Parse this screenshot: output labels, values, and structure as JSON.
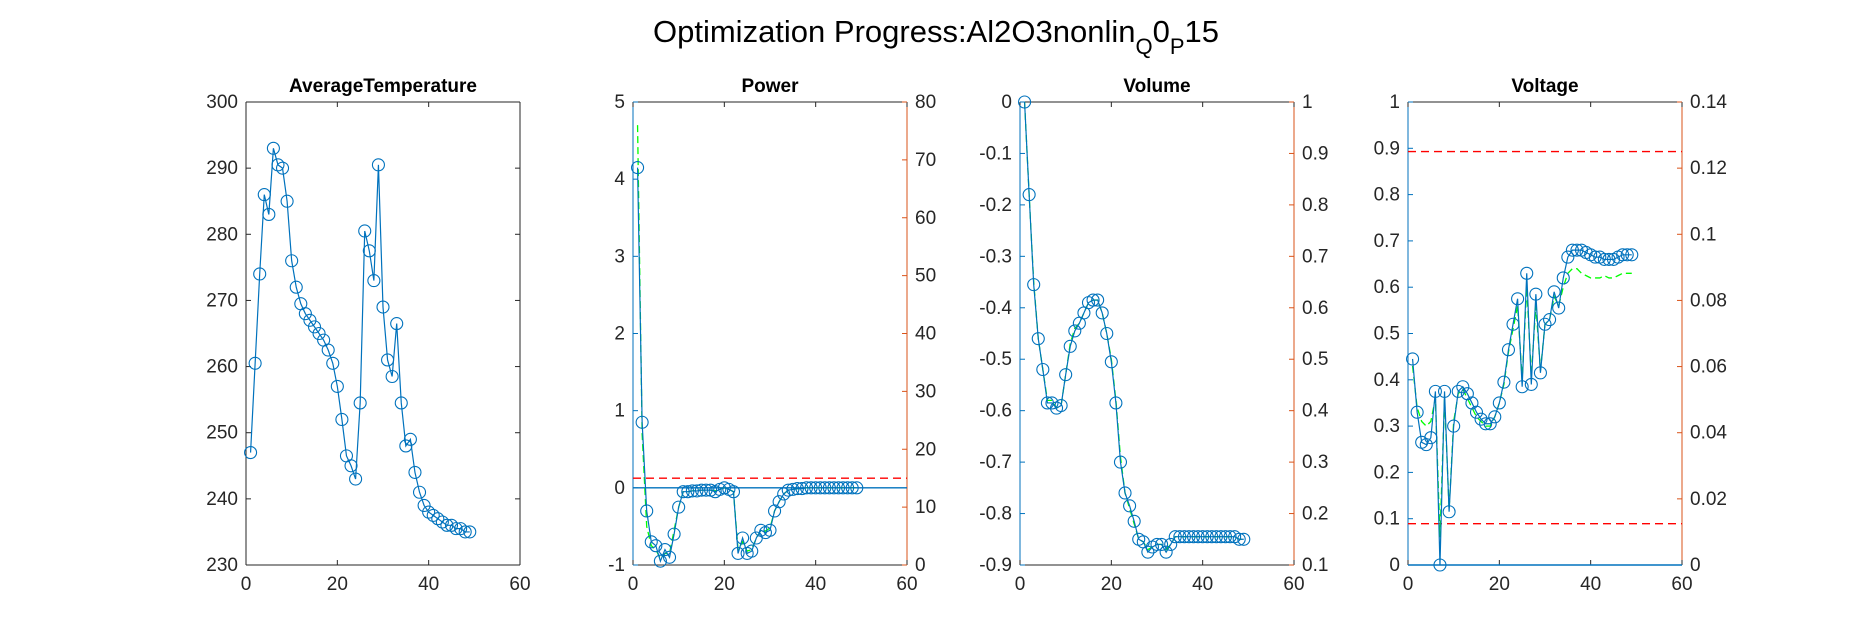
{
  "figure": {
    "title_main": "Optimization Progress:Al2O3nonlin",
    "title_sub1": "Q",
    "title_mid": "0",
    "title_sub2": "P",
    "title_end": "15"
  },
  "colors": {
    "blue": "#0072BD",
    "orange": "#D95319",
    "green": "#00FF00",
    "red": "#FF0000",
    "axis": "#262626"
  },
  "chart_data": [
    {
      "type": "line",
      "title": "AverageTemperature",
      "xlim": [
        0,
        60
      ],
      "xticks": [
        0,
        20,
        40,
        60
      ],
      "ylim": [
        230,
        300
      ],
      "yticks": [
        230,
        240,
        250,
        260,
        270,
        280,
        290,
        300
      ],
      "x": [
        1,
        2,
        3,
        4,
        5,
        6,
        7,
        8,
        9,
        10,
        11,
        12,
        13,
        14,
        15,
        16,
        17,
        18,
        19,
        20,
        21,
        22,
        23,
        24,
        25,
        26,
        27,
        28,
        29,
        30,
        31,
        32,
        33,
        34,
        35,
        36,
        37,
        38,
        39,
        40,
        41,
        42,
        43,
        44,
        45,
        46,
        47,
        48,
        49
      ],
      "y": [
        247,
        260.5,
        274,
        286,
        283,
        293,
        290.5,
        290,
        285,
        276,
        272,
        269.5,
        268,
        267,
        266,
        265,
        264,
        262.5,
        260.5,
        257,
        252,
        246.5,
        245,
        243,
        254.5,
        280.5,
        277.5,
        273,
        290.5,
        269,
        261,
        258.5,
        266.5,
        254.5,
        248,
        249,
        244,
        241,
        239,
        238,
        237.5,
        237,
        236.5,
        236,
        236,
        235.5,
        235.5,
        235,
        235
      ],
      "series_color": "blue",
      "marker": "circle"
    },
    {
      "type": "line",
      "title": "Power",
      "xlim": [
        0,
        60
      ],
      "xticks": [
        0,
        20,
        40,
        60
      ],
      "ylim": [
        -1,
        5
      ],
      "yticks": [
        -1,
        0,
        1,
        2,
        3,
        4,
        5
      ],
      "y2lim": [
        0,
        80
      ],
      "y2ticks": [
        0,
        10,
        20,
        30,
        40,
        50,
        60,
        70,
        80
      ],
      "x": [
        1,
        2,
        3,
        4,
        5,
        6,
        7,
        8,
        9,
        10,
        11,
        12,
        13,
        14,
        15,
        16,
        17,
        18,
        19,
        20,
        21,
        22,
        23,
        24,
        25,
        26,
        27,
        28,
        29,
        30,
        31,
        32,
        33,
        34,
        35,
        36,
        37,
        38,
        39,
        40,
        41,
        42,
        43,
        44,
        45,
        46,
        47,
        48,
        49
      ],
      "y": [
        4.15,
        0.85,
        -0.3,
        -0.7,
        -0.75,
        -0.95,
        -0.8,
        -0.9,
        -0.6,
        -0.25,
        -0.05,
        -0.05,
        -0.04,
        -0.04,
        -0.03,
        -0.03,
        -0.03,
        -0.05,
        -0.02,
        0,
        -0.02,
        -0.05,
        -0.85,
        -0.65,
        -0.85,
        -0.82,
        -0.65,
        -0.55,
        -0.58,
        -0.55,
        -0.3,
        -0.18,
        -0.08,
        -0.03,
        -0.02,
        -0.01,
        -0.01,
        0,
        0,
        0,
        0,
        0,
        0,
        0,
        0,
        0,
        0,
        0,
        0
      ],
      "green_dash": [
        4.7,
        0.7,
        -0.5,
        -0.75,
        -0.8,
        -0.92,
        -0.85,
        -0.85,
        -0.55,
        -0.25,
        -0.05,
        -0.05,
        -0.04,
        -0.03,
        -0.03,
        -0.03,
        -0.03,
        -0.04,
        -0.02,
        0,
        -0.02,
        -0.05,
        -0.8,
        -0.7,
        -0.82,
        -0.8,
        -0.65,
        -0.55,
        -0.56,
        -0.52,
        -0.3,
        -0.18,
        -0.08,
        -0.03,
        -0.02,
        -0.01,
        -0.01,
        0,
        0,
        0,
        0,
        0,
        0,
        0,
        0,
        0,
        0,
        0,
        0
      ],
      "hlines_left": [
        {
          "y": 0,
          "color": "blue",
          "style": "solid"
        }
      ],
      "hlines_right": [
        {
          "y": 15,
          "color": "red",
          "style": "dashed"
        }
      ],
      "series_color": "blue",
      "marker": "circle"
    },
    {
      "type": "line",
      "title": "Volume",
      "xlim": [
        0,
        60
      ],
      "xticks": [
        0,
        20,
        40,
        60
      ],
      "ylim": [
        -0.9,
        0
      ],
      "yticks": [
        -0.9,
        -0.8,
        -0.7,
        -0.6,
        -0.5,
        -0.4,
        -0.3,
        -0.2,
        -0.1,
        0
      ],
      "y2lim": [
        0.1,
        1
      ],
      "y2ticks": [
        0.1,
        0.2,
        0.3,
        0.4,
        0.5,
        0.6,
        0.7,
        0.8,
        0.9,
        1
      ],
      "x": [
        1,
        2,
        3,
        4,
        5,
        6,
        7,
        8,
        9,
        10,
        11,
        12,
        13,
        14,
        15,
        16,
        17,
        18,
        19,
        20,
        21,
        22,
        23,
        24,
        25,
        26,
        27,
        28,
        29,
        30,
        31,
        32,
        33,
        34,
        35,
        36,
        37,
        38,
        39,
        40,
        41,
        42,
        43,
        44,
        45,
        46,
        47,
        48,
        49
      ],
      "y": [
        0,
        -0.18,
        -0.355,
        -0.46,
        -0.52,
        -0.585,
        -0.585,
        -0.595,
        -0.59,
        -0.53,
        -0.475,
        -0.445,
        -0.43,
        -0.41,
        -0.39,
        -0.385,
        -0.385,
        -0.41,
        -0.45,
        -0.505,
        -0.585,
        -0.7,
        -0.76,
        -0.785,
        -0.815,
        -0.85,
        -0.855,
        -0.875,
        -0.865,
        -0.86,
        -0.86,
        -0.875,
        -0.86,
        -0.845,
        -0.845,
        -0.845,
        -0.845,
        -0.845,
        -0.845,
        -0.845,
        -0.845,
        -0.845,
        -0.845,
        -0.845,
        -0.845,
        -0.845,
        -0.845,
        -0.85,
        -0.85
      ],
      "green_dash": [
        0,
        -0.18,
        -0.35,
        -0.46,
        -0.52,
        -0.58,
        -0.58,
        -0.595,
        -0.59,
        -0.53,
        -0.47,
        -0.44,
        -0.43,
        -0.41,
        -0.39,
        -0.385,
        -0.385,
        -0.41,
        -0.45,
        -0.5,
        -0.58,
        -0.69,
        -0.76,
        -0.79,
        -0.82,
        -0.85,
        -0.855,
        -0.87,
        -0.865,
        -0.86,
        -0.86,
        -0.87,
        -0.86,
        -0.845,
        -0.845,
        -0.845,
        -0.845,
        -0.845,
        -0.845,
        -0.845,
        -0.845,
        -0.845,
        -0.845,
        -0.845,
        -0.845,
        -0.845,
        -0.845,
        -0.85,
        -0.85
      ],
      "series_color": "blue",
      "marker": "circle"
    },
    {
      "type": "line",
      "title": "Voltage",
      "xlim": [
        0,
        60
      ],
      "xticks": [
        0,
        20,
        40,
        60
      ],
      "ylim": [
        0,
        1
      ],
      "yticks": [
        0,
        0.1,
        0.2,
        0.3,
        0.4,
        0.5,
        0.6,
        0.7,
        0.8,
        0.9,
        1
      ],
      "y2lim": [
        0,
        0.14
      ],
      "y2ticks": [
        0,
        0.02,
        0.04,
        0.06,
        0.08,
        0.1,
        0.12,
        0.14
      ],
      "x": [
        1,
        2,
        3,
        4,
        5,
        6,
        7,
        8,
        9,
        10,
        11,
        12,
        13,
        14,
        15,
        16,
        17,
        18,
        19,
        20,
        21,
        22,
        23,
        24,
        25,
        26,
        27,
        28,
        29,
        30,
        31,
        32,
        33,
        34,
        35,
        36,
        37,
        38,
        39,
        40,
        41,
        42,
        43,
        44,
        45,
        46,
        47,
        48,
        49
      ],
      "y": [
        0.445,
        0.33,
        0.265,
        0.26,
        0.275,
        0.375,
        0.0,
        0.375,
        0.115,
        0.3,
        0.375,
        0.385,
        0.37,
        0.35,
        0.33,
        0.315,
        0.305,
        0.305,
        0.32,
        0.35,
        0.395,
        0.465,
        0.52,
        0.575,
        0.385,
        0.63,
        0.39,
        0.585,
        0.415,
        0.52,
        0.53,
        0.59,
        0.555,
        0.62,
        0.665,
        0.68,
        0.68,
        0.68,
        0.675,
        0.67,
        0.665,
        0.665,
        0.66,
        0.66,
        0.66,
        0.665,
        0.67,
        0.67,
        0.67
      ],
      "green_dash": [
        0.43,
        0.34,
        0.31,
        0.3,
        0.31,
        0.36,
        0.06,
        0.36,
        0.12,
        0.31,
        0.37,
        0.38,
        0.36,
        0.34,
        0.32,
        0.31,
        0.3,
        0.3,
        0.32,
        0.35,
        0.39,
        0.46,
        0.51,
        0.56,
        0.4,
        0.6,
        0.41,
        0.56,
        0.42,
        0.52,
        0.53,
        0.58,
        0.56,
        0.6,
        0.63,
        0.64,
        0.64,
        0.63,
        0.625,
        0.62,
        0.62,
        0.62,
        0.625,
        0.62,
        0.62,
        0.625,
        0.63,
        0.63,
        0.63
      ],
      "hlines_left": [
        {
          "y": 0,
          "color": "blue",
          "style": "solid"
        }
      ],
      "hlines_right": [
        {
          "y": 0.0125,
          "color": "red",
          "style": "dashed"
        },
        {
          "y": 0.125,
          "color": "red",
          "style": "dashed"
        }
      ],
      "series_color": "blue",
      "marker": "circle"
    }
  ]
}
